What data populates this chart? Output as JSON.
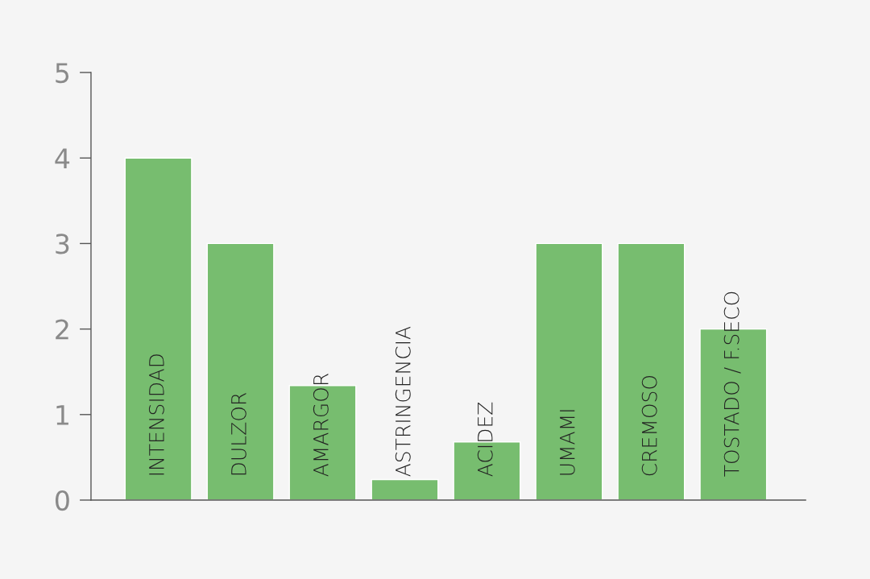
{
  "chart_data": {
    "type": "bar",
    "categories": [
      "INTENSIDAD",
      "DULZOR",
      "AMARGOR",
      "ASTRINGENCIA",
      "ACIDEZ",
      "UMAMI",
      "CREMOSO",
      "TOSTADO / F.SECO"
    ],
    "values": [
      4,
      3,
      1.34,
      0.24,
      0.68,
      3,
      3,
      2
    ],
    "color": "#77bd6f",
    "ylim": [
      0,
      5
    ],
    "yticks": [
      0,
      1,
      2,
      3,
      4,
      5
    ],
    "grid": false
  }
}
